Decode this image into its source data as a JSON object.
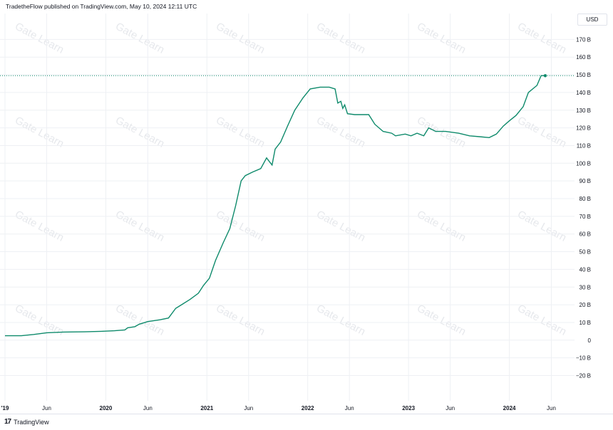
{
  "header": {
    "publisher_line": "TradetheFlow published on TradingView.com, May 10, 2024 12:11 UTC"
  },
  "currency_badge": "USD",
  "footer": {
    "logo_glyph": "17",
    "brand": "TradingView"
  },
  "watermark_text": "Gate Learn",
  "colors": {
    "line": "#0e8a6b",
    "grid": "#eef0f4",
    "ref_line": "#0e8a6b"
  },
  "chart_data": {
    "type": "line",
    "y_unit": "USD",
    "ylim": [
      -30,
      180
    ],
    "y_ticks": [
      {
        "value": 170,
        "label": "170 B"
      },
      {
        "value": 160,
        "label": "160 B"
      },
      {
        "value": 150,
        "label": "150 B"
      },
      {
        "value": 140,
        "label": "140 B"
      },
      {
        "value": 130,
        "label": "130 B"
      },
      {
        "value": 120,
        "label": "120 B"
      },
      {
        "value": 110,
        "label": "110 B"
      },
      {
        "value": 100,
        "label": "100 B"
      },
      {
        "value": 90,
        "label": "90 B"
      },
      {
        "value": 80,
        "label": "80 B"
      },
      {
        "value": 70,
        "label": "70 B"
      },
      {
        "value": 60,
        "label": "60 B"
      },
      {
        "value": 50,
        "label": "50 B"
      },
      {
        "value": 40,
        "label": "40 B"
      },
      {
        "value": 30,
        "label": "30 B"
      },
      {
        "value": 20,
        "label": "20 B"
      },
      {
        "value": 10,
        "label": "10 B"
      },
      {
        "value": 0,
        "label": "0"
      },
      {
        "value": -10,
        "label": "−10 B"
      },
      {
        "value": -20,
        "label": "−20 B"
      }
    ],
    "xlim": [
      "2019-01-01",
      "2024-07-20"
    ],
    "x_ticks": [
      {
        "date": "2019-01-01",
        "label": "'19",
        "major": true
      },
      {
        "date": "2019-06-01",
        "label": "Jun",
        "major": false
      },
      {
        "date": "2020-01-01",
        "label": "2020",
        "major": true
      },
      {
        "date": "2020-06-01",
        "label": "Jun",
        "major": false
      },
      {
        "date": "2021-01-01",
        "label": "2021",
        "major": true
      },
      {
        "date": "2021-06-01",
        "label": "Jun",
        "major": false
      },
      {
        "date": "2022-01-01",
        "label": "2022",
        "major": true
      },
      {
        "date": "2022-06-01",
        "label": "Jun",
        "major": false
      },
      {
        "date": "2023-01-01",
        "label": "2023",
        "major": true
      },
      {
        "date": "2023-06-01",
        "label": "Jun",
        "major": false
      },
      {
        "date": "2024-01-01",
        "label": "2024",
        "major": true
      },
      {
        "date": "2024-06-01",
        "label": "Jun",
        "major": false
      }
    ],
    "last_value": 149.5,
    "series": [
      {
        "points": [
          [
            "2019-01-01",
            2.5
          ],
          [
            "2019-03-01",
            2.5
          ],
          [
            "2019-04-15",
            3.2
          ],
          [
            "2019-06-01",
            4.2
          ],
          [
            "2019-08-01",
            4.6
          ],
          [
            "2019-10-15",
            4.7
          ],
          [
            "2019-12-15",
            5.0
          ],
          [
            "2020-02-01",
            5.3
          ],
          [
            "2020-03-10",
            5.8
          ],
          [
            "2020-03-20",
            7.0
          ],
          [
            "2020-04-15",
            7.6
          ],
          [
            "2020-05-01",
            9.0
          ],
          [
            "2020-06-01",
            10.5
          ],
          [
            "2020-07-15",
            11.5
          ],
          [
            "2020-08-15",
            12.5
          ],
          [
            "2020-09-10",
            18.0
          ],
          [
            "2020-10-01",
            20.0
          ],
          [
            "2020-11-01",
            23.0
          ],
          [
            "2020-12-01",
            26.5
          ],
          [
            "2020-12-20",
            31.0
          ],
          [
            "2021-01-10",
            35.0
          ],
          [
            "2021-02-01",
            45.0
          ],
          [
            "2021-03-01",
            55.0
          ],
          [
            "2021-03-25",
            63.0
          ],
          [
            "2021-04-15",
            76.0
          ],
          [
            "2021-05-05",
            90.0
          ],
          [
            "2021-05-20",
            93.0
          ],
          [
            "2021-06-15",
            95.0
          ],
          [
            "2021-07-15",
            97.0
          ],
          [
            "2021-08-05",
            103.0
          ],
          [
            "2021-08-15",
            101.0
          ],
          [
            "2021-08-25",
            99.0
          ],
          [
            "2021-09-05",
            108.0
          ],
          [
            "2021-09-25",
            112.0
          ],
          [
            "2021-10-20",
            121.0
          ],
          [
            "2021-11-15",
            130.0
          ],
          [
            "2021-12-15",
            137.0
          ],
          [
            "2022-01-10",
            142.0
          ],
          [
            "2022-02-15",
            143.0
          ],
          [
            "2022-03-20",
            143.0
          ],
          [
            "2022-04-10",
            142.0
          ],
          [
            "2022-04-20",
            134.0
          ],
          [
            "2022-05-01",
            135.0
          ],
          [
            "2022-05-08",
            131.0
          ],
          [
            "2022-05-15",
            133.0
          ],
          [
            "2022-05-25",
            128.0
          ],
          [
            "2022-06-20",
            127.5
          ],
          [
            "2022-07-20",
            127.5
          ],
          [
            "2022-08-10",
            127.5
          ],
          [
            "2022-09-01",
            122.0
          ],
          [
            "2022-10-01",
            118.0
          ],
          [
            "2022-11-01",
            117.0
          ],
          [
            "2022-11-15",
            115.5
          ],
          [
            "2022-12-20",
            116.5
          ],
          [
            "2023-01-10",
            115.5
          ],
          [
            "2023-02-01",
            117.0
          ],
          [
            "2023-02-25",
            115.5
          ],
          [
            "2023-03-15",
            120.0
          ],
          [
            "2023-04-10",
            118.0
          ],
          [
            "2023-05-15",
            118.0
          ],
          [
            "2023-07-01",
            117.0
          ],
          [
            "2023-08-10",
            115.5
          ],
          [
            "2023-09-15",
            115.0
          ],
          [
            "2023-10-20",
            114.5
          ],
          [
            "2023-11-15",
            116.5
          ],
          [
            "2023-12-10",
            121.0
          ],
          [
            "2024-01-01",
            124.0
          ],
          [
            "2024-01-25",
            127.0
          ],
          [
            "2024-02-20",
            132.0
          ],
          [
            "2024-03-10",
            140.0
          ],
          [
            "2024-04-10",
            144.0
          ],
          [
            "2024-04-25",
            149.5
          ],
          [
            "2024-05-10",
            149.5
          ]
        ]
      }
    ]
  }
}
